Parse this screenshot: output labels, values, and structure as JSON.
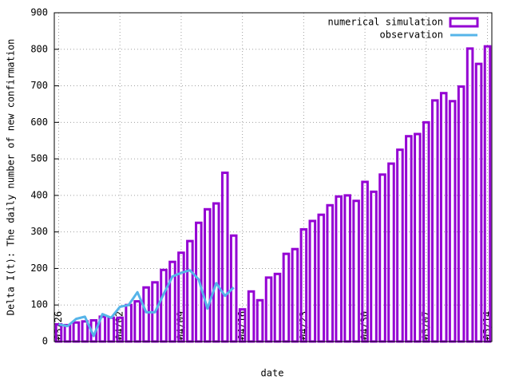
{
  "chart_data": {
    "type": "bar",
    "x_label": "date",
    "y_label": "Delta I(t): The daily number of new confirmation",
    "categories": [
      "03/26",
      null,
      null,
      null,
      null,
      null,
      null,
      "04/02",
      null,
      null,
      null,
      null,
      null,
      null,
      "04/09",
      null,
      null,
      null,
      null,
      null,
      null,
      "04/16",
      null,
      null,
      null,
      null,
      null,
      null,
      "04/23",
      null,
      null,
      null,
      null,
      null,
      null,
      "04/30",
      null,
      null,
      null,
      null,
      null,
      null,
      "05/07",
      null,
      null,
      null,
      null,
      null,
      null,
      "05/14"
    ],
    "series": [
      {
        "name": "numerical simulation",
        "color": "#9400d3",
        "type": "bar",
        "values": [
          47,
          45,
          52,
          55,
          58,
          68,
          65,
          65,
          100,
          110,
          148,
          162,
          196,
          218,
          243,
          275,
          325,
          362,
          378,
          462,
          290,
          88,
          137,
          113,
          175,
          185,
          240,
          253,
          307,
          330,
          347,
          373,
          397,
          400,
          385,
          437,
          410,
          457,
          487,
          525,
          562,
          568,
          600,
          660,
          680,
          658,
          698,
          802,
          760,
          808
        ]
      },
      {
        "name": "observation",
        "color": "#56b4e9",
        "type": "line",
        "values": [
          47,
          42,
          62,
          68,
          15,
          75,
          65,
          95,
          100,
          135,
          80,
          80,
          130,
          178,
          188,
          195,
          170,
          90,
          160,
          125,
          148,
          null,
          null,
          null,
          null,
          null,
          null,
          null,
          null,
          null,
          null,
          null,
          null,
          null,
          null,
          null,
          null,
          null,
          null,
          null,
          null,
          null,
          null,
          null,
          null,
          null,
          null,
          null,
          null,
          null
        ]
      }
    ],
    "ylim": [
      0,
      900
    ],
    "yticks": [
      0,
      100,
      200,
      300,
      400,
      500,
      600,
      700,
      800,
      900
    ],
    "grid": true,
    "legend": "top-right"
  }
}
